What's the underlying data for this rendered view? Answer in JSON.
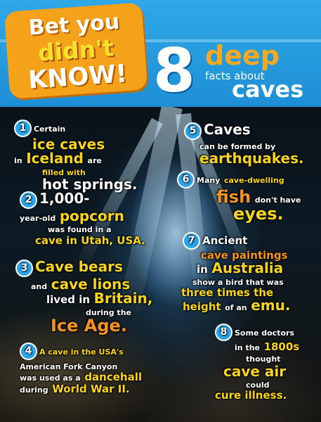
{
  "header": {
    "badge_line1": "Bet you",
    "badge_line2": "didn't",
    "badge_line3": "KNOW!",
    "number": "8",
    "title_deep": "deep",
    "title_facts": "facts about",
    "title_caves": "caves"
  },
  "colors": {
    "header_blue": "#2fa8e6",
    "badge_orange": "#f5a21b",
    "fact_yellow": "#f7d51d",
    "fact_orange": "#f7931e",
    "bullet_blue": "#2aa3e8"
  },
  "facts": [
    {
      "num": "1",
      "p1": "Certain",
      "p2": "ice caves",
      "p3": "in",
      "p4": "Iceland",
      "p5": "are",
      "p6": "filled with",
      "p7": "hot springs."
    },
    {
      "num": "2",
      "p1": "1,000-",
      "p2": "year-old",
      "p3": "popcorn",
      "p4": "was found in a",
      "p5": "cave in Utah, USA."
    },
    {
      "num": "3",
      "p1": "Cave bears",
      "p2": "and",
      "p3": "cave lions",
      "p4": "lived in",
      "p5": "Britain,",
      "p6": "during the",
      "p7": "Ice Age."
    },
    {
      "num": "4",
      "p1": "A cave in the USA's",
      "p2": "American Fork Canyon",
      "p3": "was used as a",
      "p4": "dancehall",
      "p5": "during",
      "p6": "World War II."
    },
    {
      "num": "5",
      "p1": "Caves",
      "p2": "can be formed by",
      "p3": "earthquakes."
    },
    {
      "num": "6",
      "p1": "Many",
      "p2": "cave-dwelling",
      "p3": "fish",
      "p4": "don't have",
      "p5": "eyes."
    },
    {
      "num": "7",
      "p1": "Ancient",
      "p2": "cave paintings",
      "p3": "in",
      "p4": "Australia",
      "p5": "show a bird that was",
      "p6": "three times the",
      "p7": "height",
      "p8": "of an",
      "p9": "emu."
    },
    {
      "num": "8",
      "p1": "Some doctors",
      "p2": "in the",
      "p3": "1800s",
      "p4": "thought",
      "p5": "cave air",
      "p6": "could",
      "p7": "cure illness."
    }
  ]
}
